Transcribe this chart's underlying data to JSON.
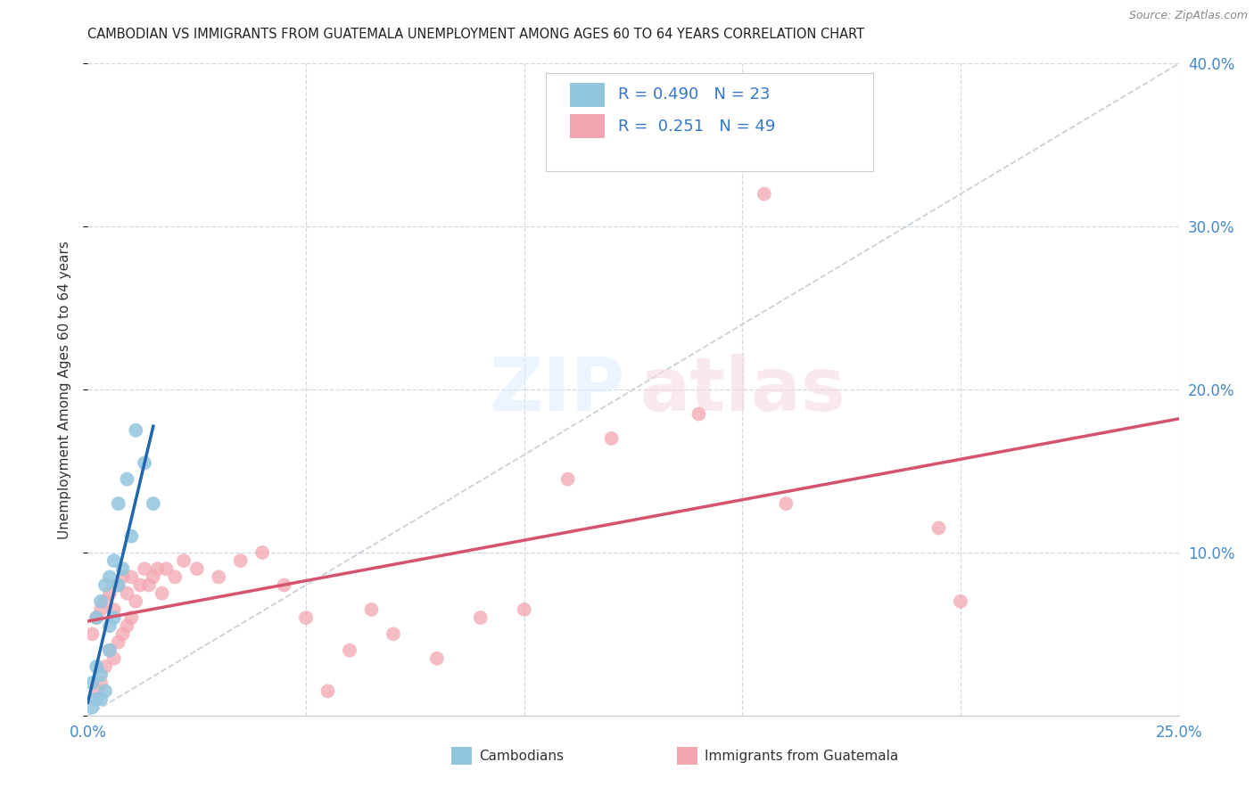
{
  "title": "CAMBODIAN VS IMMIGRANTS FROM GUATEMALA UNEMPLOYMENT AMONG AGES 60 TO 64 YEARS CORRELATION CHART",
  "source": "Source: ZipAtlas.com",
  "ylabel": "Unemployment Among Ages 60 to 64 years",
  "xlim": [
    0.0,
    0.25
  ],
  "ylim": [
    0.0,
    0.4
  ],
  "x_ticks": [
    0.0,
    0.05,
    0.1,
    0.15,
    0.2,
    0.25
  ],
  "y_ticks": [
    0.0,
    0.1,
    0.2,
    0.3,
    0.4
  ],
  "legend_r_cambodian": "0.490",
  "legend_n_cambodian": "23",
  "legend_r_guatemala": "0.251",
  "legend_n_guatemala": "49",
  "legend_label_cambodian": "Cambodians",
  "legend_label_guatemala": "Immigrants from Guatemala",
  "color_cambodian": "#92c5de",
  "color_cambodian_line": "#2166ac",
  "color_guatemala": "#f4a6b0",
  "color_guatemala_line": "#d6536d",
  "color_dashed": "#c8d0d8",
  "cambodian_x": [
    0.001,
    0.001,
    0.002,
    0.002,
    0.002,
    0.003,
    0.003,
    0.003,
    0.004,
    0.004,
    0.005,
    0.005,
    0.005,
    0.006,
    0.006,
    0.007,
    0.007,
    0.008,
    0.009,
    0.01,
    0.011,
    0.013,
    0.015
  ],
  "cambodian_y": [
    0.005,
    0.02,
    0.01,
    0.03,
    0.06,
    0.01,
    0.025,
    0.07,
    0.015,
    0.08,
    0.04,
    0.055,
    0.085,
    0.06,
    0.095,
    0.08,
    0.13,
    0.09,
    0.145,
    0.11,
    0.175,
    0.155,
    0.13
  ],
  "guatemala_x": [
    0.001,
    0.002,
    0.002,
    0.003,
    0.003,
    0.004,
    0.004,
    0.005,
    0.005,
    0.006,
    0.006,
    0.007,
    0.007,
    0.008,
    0.008,
    0.009,
    0.009,
    0.01,
    0.01,
    0.011,
    0.012,
    0.013,
    0.014,
    0.015,
    0.016,
    0.017,
    0.018,
    0.02,
    0.022,
    0.025,
    0.03,
    0.035,
    0.04,
    0.045,
    0.05,
    0.055,
    0.06,
    0.065,
    0.07,
    0.08,
    0.09,
    0.1,
    0.11,
    0.12,
    0.14,
    0.155,
    0.16,
    0.195,
    0.2
  ],
  "guatemala_y": [
    0.05,
    0.015,
    0.06,
    0.02,
    0.065,
    0.03,
    0.07,
    0.04,
    0.075,
    0.035,
    0.065,
    0.045,
    0.08,
    0.05,
    0.085,
    0.055,
    0.075,
    0.06,
    0.085,
    0.07,
    0.08,
    0.09,
    0.08,
    0.085,
    0.09,
    0.075,
    0.09,
    0.085,
    0.095,
    0.09,
    0.085,
    0.095,
    0.1,
    0.08,
    0.06,
    0.015,
    0.04,
    0.065,
    0.05,
    0.035,
    0.06,
    0.065,
    0.145,
    0.17,
    0.185,
    0.32,
    0.13,
    0.115,
    0.07
  ],
  "background_color": "#ffffff",
  "grid_color": "#d0d8e0"
}
